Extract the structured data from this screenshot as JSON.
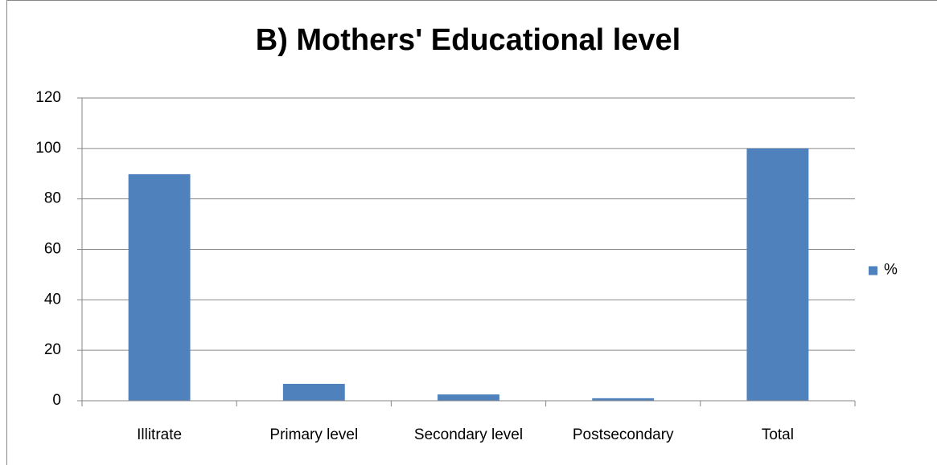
{
  "chart_data": {
    "type": "bar",
    "title": "B) Mothers' Educational level",
    "categories": [
      "Illitrate",
      "Primary level",
      "Secondary level",
      "Postsecondary",
      "Total"
    ],
    "series": [
      {
        "name": "%",
        "color": "#4f81bd",
        "values": [
          89.8,
          6.7,
          2.5,
          1.0,
          100
        ]
      }
    ],
    "ylim": [
      0,
      120
    ],
    "yticks": [
      0,
      20,
      40,
      60,
      80,
      100,
      120
    ],
    "grid": true,
    "legend": "right"
  }
}
